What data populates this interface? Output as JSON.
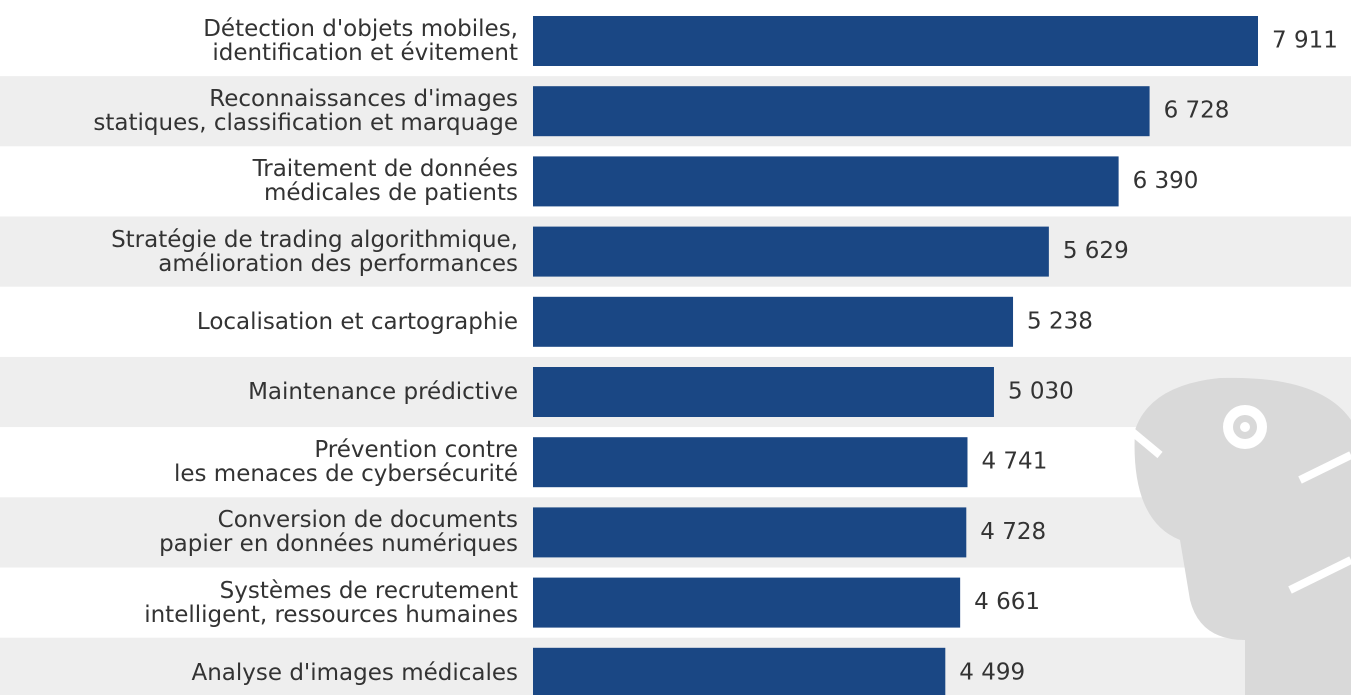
{
  "chart_data": {
    "type": "bar",
    "orientation": "horizontal",
    "color": "#1a4784",
    "categories": [
      "Détection d'objets mobiles,\nidentification et évitement",
      "Reconnaissances d'images\nstatiques, classification et marquage",
      "Traitement de données\nmédicales de patients",
      "Stratégie de trading algorithmique,\namélioration des performances",
      "Localisation et cartographie",
      "Maintenance prédictive",
      "Prévention contre\nles menaces de cybersécurité",
      "Conversion de documents\npapier en données numériques",
      "Systèmes de recrutement\nintelligent, ressources humaines",
      "Analyse d'images médicales"
    ],
    "values": [
      7911,
      6728,
      6390,
      5629,
      5238,
      5030,
      4741,
      4728,
      4661,
      4499
    ],
    "value_labels": [
      "7 911",
      "6 728",
      "6 390",
      "5 629",
      "5 238",
      "5 030",
      "4 741",
      "4 728",
      "4 661",
      "4 499"
    ]
  }
}
